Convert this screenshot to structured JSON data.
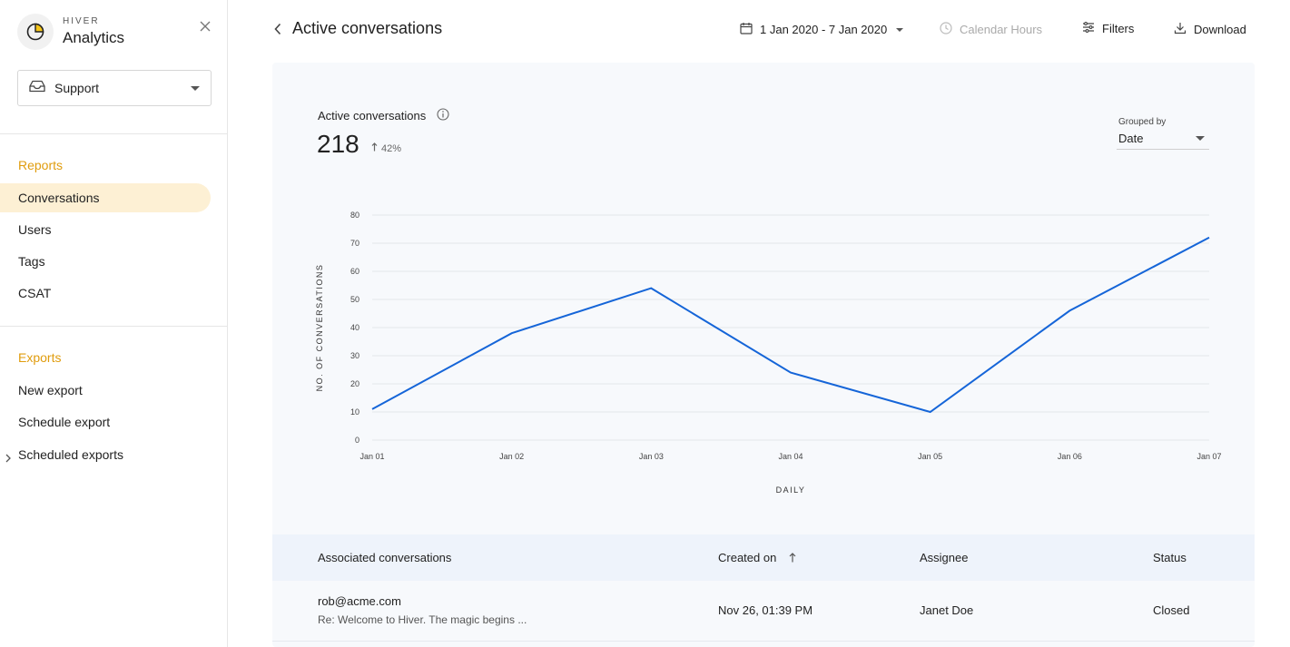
{
  "sidebar": {
    "brand_small": "HIVER",
    "brand_big": "Analytics",
    "inbox_select": "Support",
    "reports_title": "Reports",
    "reports_items": [
      "Conversations",
      "Users",
      "Tags",
      "CSAT"
    ],
    "exports_title": "Exports",
    "exports_items": [
      "New export",
      "Schedule export",
      "Scheduled exports"
    ]
  },
  "header": {
    "title": "Active conversations",
    "date_range": "1 Jan 2020 - 7 Jan 2020",
    "calendar_hours": "Calendar Hours",
    "filters": "Filters",
    "download": "Download"
  },
  "metric": {
    "label": "Active conversations",
    "value": "218",
    "delta": "42%"
  },
  "grouped_by": {
    "label": "Grouped by",
    "value": "Date"
  },
  "chart_data": {
    "type": "line",
    "categories": [
      "Jan 01",
      "Jan 02",
      "Jan 03",
      "Jan 04",
      "Jan 05",
      "Jan 06",
      "Jan 07"
    ],
    "values": [
      11,
      38,
      54,
      24,
      10,
      46,
      72
    ],
    "title": "",
    "xlabel": "DAILY",
    "ylabel": "NO. OF CONVERSATIONS",
    "ylim": [
      0,
      80
    ],
    "yticks": [
      "0",
      "10",
      "20",
      "30",
      "40",
      "50",
      "60",
      "70",
      "80"
    ],
    "grid": true,
    "color": "#1565d8"
  },
  "table": {
    "headers": [
      "Associated conversations",
      "Created on",
      "Assignee",
      "Status"
    ],
    "rows": [
      {
        "email": "rob@acme.com",
        "subject": "Re: Welcome to Hiver. The magic begins ...",
        "created_on": "Nov 26, 01:39 PM",
        "assignee": "Janet Doe",
        "status": "Closed"
      }
    ]
  }
}
